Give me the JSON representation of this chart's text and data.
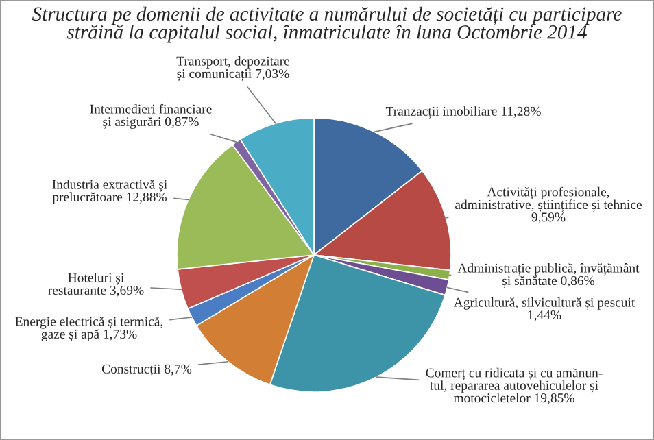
{
  "chart_data": {
    "type": "pie",
    "title": "Structura pe domenii de activitate a numărului de societăți cu participare\nstrăină la capitalul social, înmatriculate în luna Octombrie 2014",
    "categories": [
      "Tranzacții imobiliare",
      "Activități profesionale,\nadministrative, științifice și tehnice",
      "Administrație publică, învățământ\nși sănătate",
      "Agricultură, silvicultură și pescuit",
      "Comerț cu ridicata și cu amănun-\ntul, repararea autovehiculelor și\nmotocicletelor",
      "Construcții",
      "Energie electrică și termică,\ngaze și apă",
      "Hoteluri și\nrestaurante",
      "Industria extractivă și\nprelucrătoare",
      "Intermedieri financiare\nși asigurări",
      "Transport, depozitare\nși comunicații"
    ],
    "values": [
      11.28,
      9.59,
      0.86,
      1.44,
      19.85,
      8.7,
      1.73,
      3.69,
      12.88,
      0.87,
      7.03
    ],
    "value_labels": [
      "11,28%",
      "9,59%",
      "0,86%",
      "1,44%",
      "19,85%",
      "8,7%",
      "1,73%",
      "3,69%",
      "12,88%",
      "0,87%",
      "7,03%"
    ],
    "colors": [
      "#3f6aa0",
      "#b84a46",
      "#8cb04a",
      "#6d4e93",
      "#3d93a8",
      "#d27e35",
      "#4a7dc4",
      "#c0504d",
      "#9bbb59",
      "#8064a2",
      "#4bacc6"
    ],
    "legend": false
  }
}
